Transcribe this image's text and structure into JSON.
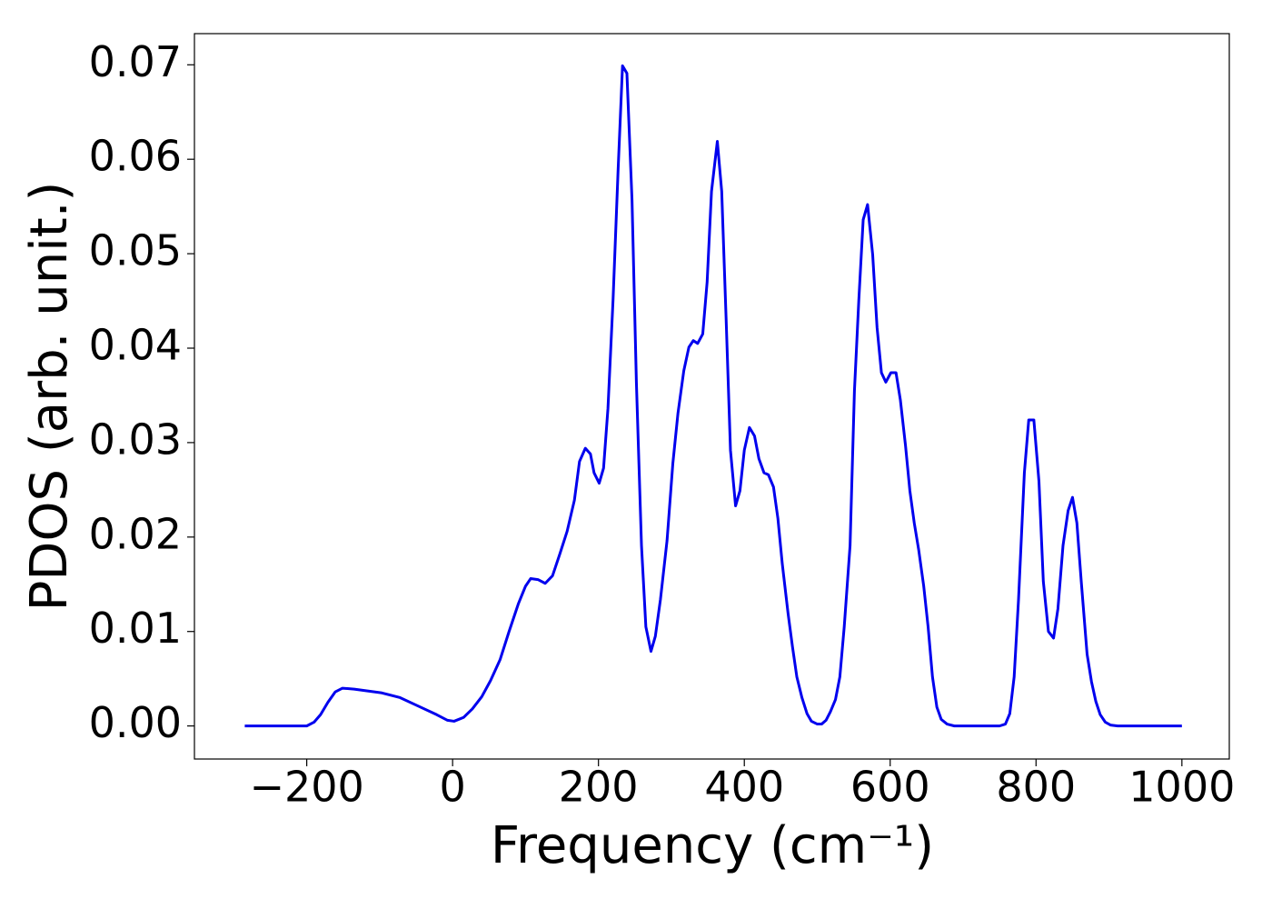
{
  "chart_data": {
    "type": "line",
    "xlabel": "Frequency (cm⁻¹)",
    "ylabel": "PDOS (arb. unit.)",
    "xlim": [
      -354,
      1065
    ],
    "ylim": [
      -0.0035,
      0.0733
    ],
    "xticks": [
      {
        "value": -200,
        "label": "−200"
      },
      0,
      200,
      400,
      600,
      800,
      1000
    ],
    "yticks": [
      {
        "value": 0,
        "label": "0.00"
      },
      0.01,
      0.02,
      0.03,
      0.04,
      0.05,
      0.06,
      0.07
    ],
    "series": [
      {
        "color": "#0000ee",
        "x": [
          -285,
          -200,
          -190,
          -181,
          -171,
          -161,
          -151,
          -135,
          -97,
          -72,
          -47,
          -22,
          -7,
          2,
          15,
          27,
          40,
          52,
          65,
          77,
          90,
          100,
          107,
          117,
          127,
          137,
          147,
          157,
          167,
          174,
          182,
          189,
          194,
          201,
          207,
          213,
          220,
          227,
          233,
          239,
          246,
          252,
          259,
          265,
          272,
          278,
          285,
          294,
          302,
          309,
          317,
          324,
          330,
          336,
          343,
          349,
          355,
          363,
          369,
          375,
          381,
          388,
          394,
          400,
          407,
          414,
          420,
          427,
          433,
          440,
          446,
          452,
          460,
          466,
          472,
          479,
          486,
          492,
          500,
          506,
          512,
          518,
          525,
          531,
          537,
          545,
          551,
          557,
          563,
          569,
          576,
          582,
          588,
          594,
          601,
          608,
          614,
          621,
          627,
          633,
          639,
          646,
          652,
          658,
          664,
          670,
          678,
          688,
          750,
          758,
          764,
          770,
          776,
          784,
          790,
          797,
          804,
          810,
          817,
          824,
          830,
          837,
          844,
          850,
          856,
          862,
          870,
          876,
          882,
          888,
          895,
          902,
          912,
          1000
        ],
        "values": [
          0,
          0,
          0.0004,
          0.0012,
          0.0025,
          0.0036,
          0.004,
          0.0039,
          0.0035,
          0.003,
          0.0021,
          0.0012,
          0.0006,
          0.0005,
          0.0009,
          0.0018,
          0.0031,
          0.0048,
          0.007,
          0.0099,
          0.0129,
          0.0148,
          0.0156,
          0.0155,
          0.0151,
          0.0159,
          0.0182,
          0.0206,
          0.0239,
          0.028,
          0.0294,
          0.0288,
          0.0268,
          0.0257,
          0.0273,
          0.0336,
          0.0451,
          0.059,
          0.0699,
          0.0691,
          0.0557,
          0.0364,
          0.0191,
          0.0105,
          0.0079,
          0.0095,
          0.0134,
          0.0196,
          0.0278,
          0.0331,
          0.0376,
          0.0401,
          0.0408,
          0.0405,
          0.0415,
          0.047,
          0.0566,
          0.0619,
          0.0566,
          0.0432,
          0.0292,
          0.0233,
          0.0249,
          0.0292,
          0.0316,
          0.0307,
          0.0283,
          0.0268,
          0.0266,
          0.0253,
          0.022,
          0.0172,
          0.0119,
          0.0084,
          0.0052,
          0.003,
          0.0013,
          0.0005,
          0.0002,
          0.0002,
          0.0006,
          0.0015,
          0.0028,
          0.0052,
          0.0105,
          0.0191,
          0.0355,
          0.0451,
          0.0536,
          0.0552,
          0.0499,
          0.0422,
          0.0374,
          0.0364,
          0.0374,
          0.0374,
          0.0345,
          0.0297,
          0.0249,
          0.0215,
          0.0187,
          0.0148,
          0.0105,
          0.0052,
          0.002,
          0.0007,
          0.0002,
          0,
          0,
          0.0002,
          0.0013,
          0.0052,
          0.0134,
          0.0268,
          0.0324,
          0.0324,
          0.0259,
          0.0153,
          0.01,
          0.0093,
          0.0124,
          0.0191,
          0.0228,
          0.0242,
          0.0215,
          0.0153,
          0.0076,
          0.0047,
          0.0026,
          0.0012,
          0.0004,
          0.0001,
          0,
          0
        ]
      }
    ]
  }
}
